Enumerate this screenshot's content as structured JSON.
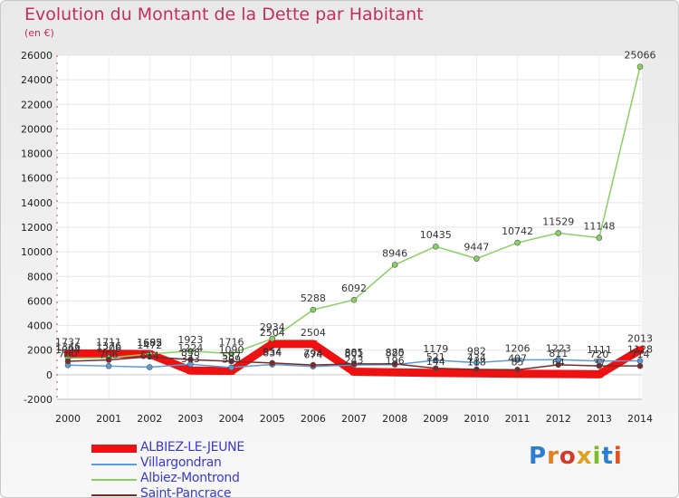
{
  "title": "Evolution du Montant de la Dette par Habitant",
  "unit_label": "(en €)",
  "logo": {
    "text": "Proxiti",
    "letters": [
      "P",
      "r",
      "o",
      "x",
      "i",
      "t",
      "i"
    ],
    "colors": [
      "#2a7fd0",
      "#e08020",
      "#d23a2a",
      "#e0a020",
      "#7cbb2a",
      "#2a7fd0",
      "#e05020"
    ]
  },
  "chart_data": {
    "type": "line",
    "title": "Evolution du Montant de la Dette par Habitant",
    "ylabel": "(en €)",
    "xlabel": "",
    "ylim": [
      -2000,
      26000
    ],
    "yticks": [
      -2000,
      0,
      2000,
      4000,
      6000,
      8000,
      10000,
      12000,
      14000,
      16000,
      18000,
      20000,
      22000,
      24000,
      26000
    ],
    "categories": [
      "2000",
      "2001",
      "2002",
      "2003",
      "2004",
      "2005",
      "2006",
      "2007",
      "2008",
      "2009",
      "2010",
      "2011",
      "2012",
      "2013",
      "2014"
    ],
    "grid": true,
    "legend_position": "bottom-left",
    "series": [
      {
        "name": "ALBIEZ-LE-JEUNE",
        "color": "#ee1111",
        "width": 9,
        "values": [
          1737,
          1711,
          1685,
          343,
          309,
          2504,
          2504,
          243,
          196,
          144,
          118,
          85,
          64,
          37,
          2013
        ],
        "labels": [
          "1737",
          "1711",
          "1685",
          "343",
          "309",
          "2504",
          "2504",
          "243",
          "196",
          "144",
          "118",
          "85",
          "64",
          "37",
          "2013"
        ]
      },
      {
        "name": "Villargondran",
        "color": "#5b9bd5",
        "width": 1.5,
        "values": [
          780,
          706,
          614,
          858,
          587,
          834,
          674,
          801,
          820,
          1179,
          982,
          1206,
          1223,
          1111,
          1128
        ],
        "labels": [
          "780",
          "706",
          "614",
          "858",
          "587",
          "834",
          "674",
          "801",
          "820",
          "1179",
          "982",
          "1206",
          "1223",
          "1111",
          "1128"
        ]
      },
      {
        "name": "Albiez-Montrond",
        "color": "#88d060",
        "width": 1.5,
        "values": [
          1346,
          1376,
          1692,
          1923,
          1716,
          2934,
          5288,
          6092,
          8946,
          10435,
          9447,
          10742,
          11529,
          11148,
          25066
        ],
        "labels": [
          "1346",
          "1376",
          "1692",
          "1923",
          "1716",
          "2934",
          "5288",
          "6092",
          "8946",
          "10435",
          "9447",
          "10742",
          "11529",
          "11148",
          "25066"
        ]
      },
      {
        "name": "Saint-Pancrace",
        "color": "#7a2a2a",
        "width": 1.5,
        "values": [
          1094,
          1206,
          1472,
          1224,
          1090,
          954,
          794,
          885,
          885,
          521,
          434,
          407,
          811,
          720,
          714
        ],
        "labels": [
          "1094",
          "1206",
          "1472",
          "1224",
          "1090",
          "954",
          "794",
          "885",
          "885",
          "521",
          "434",
          "407",
          "811",
          "720",
          "714"
        ]
      }
    ]
  }
}
